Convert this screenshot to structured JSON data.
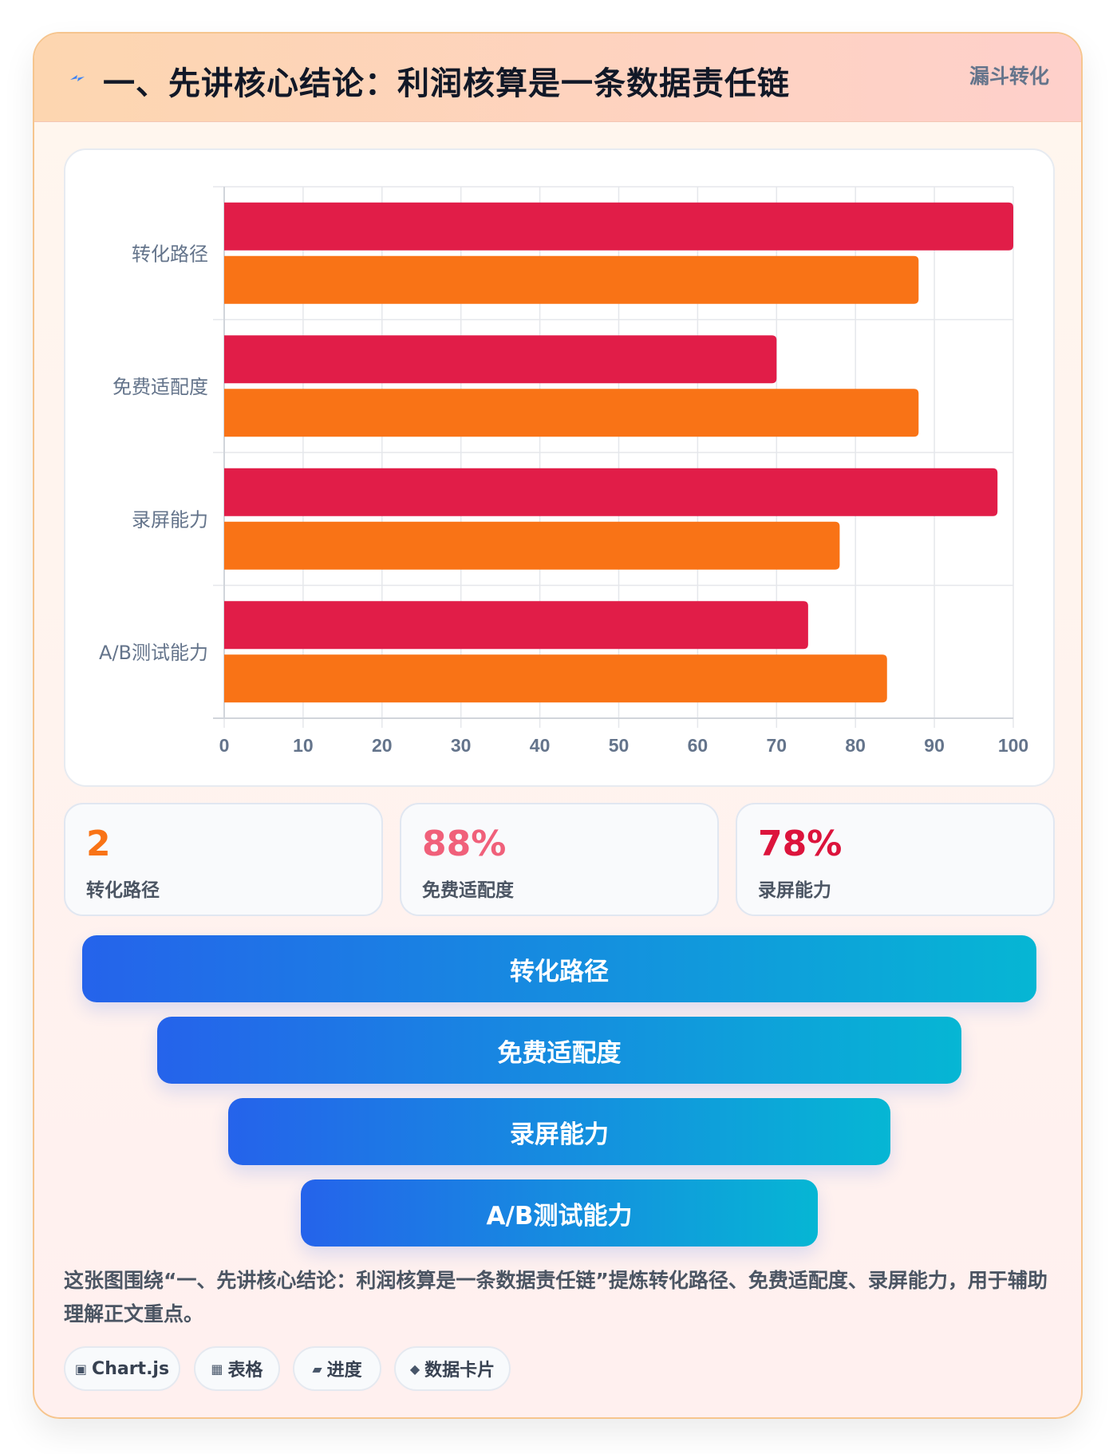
{
  "header": {
    "icon": "lightning-icon",
    "title": "一、先讲核心结论：利润核算是一条数据责任链",
    "tag": "漏斗转化"
  },
  "colors": {
    "series_a": "#e11d48",
    "series_b": "#f97316",
    "stat_orange": "#f97316",
    "stat_pink": "#f0607a",
    "stat_red": "#dc143c",
    "funnel_start": "#2563eb",
    "funnel_end": "#06b6d4"
  },
  "chart_data": {
    "type": "bar",
    "orientation": "horizontal",
    "categories": [
      "转化路径",
      "免费适配度",
      "录屏能力",
      "A/B测试能力"
    ],
    "series": [
      {
        "values": [
          100,
          70,
          98,
          74
        ]
      },
      {
        "values": [
          88,
          88,
          78,
          84
        ]
      }
    ],
    "xlim": [
      0,
      100
    ],
    "xticks": [
      0,
      10,
      20,
      30,
      40,
      50,
      60,
      70,
      80,
      90,
      100
    ],
    "grid": true,
    "legend": "none"
  },
  "stats": [
    {
      "value": "2",
      "label": "转化路径"
    },
    {
      "value": "88%",
      "label": "免费适配度"
    },
    {
      "value": "78%",
      "label": "录屏能力"
    }
  ],
  "funnel": [
    "转化路径",
    "免费适配度",
    "录屏能力",
    "A/B测试能力"
  ],
  "caption": "这张图围绕“一、先讲核心结论：利润核算是一条数据责任链”提炼转化路径、免费适配度、录屏能力，用于辅助理解正文重点。",
  "tags": [
    {
      "icon": "chart-icon",
      "glyph": "▣",
      "label": "Chart.js"
    },
    {
      "icon": "table-icon",
      "glyph": "▦",
      "label": "表格"
    },
    {
      "icon": "progress-icon",
      "glyph": "▰",
      "label": "进度"
    },
    {
      "icon": "diamond-icon",
      "glyph": "◆",
      "label": "数据卡片"
    }
  ]
}
